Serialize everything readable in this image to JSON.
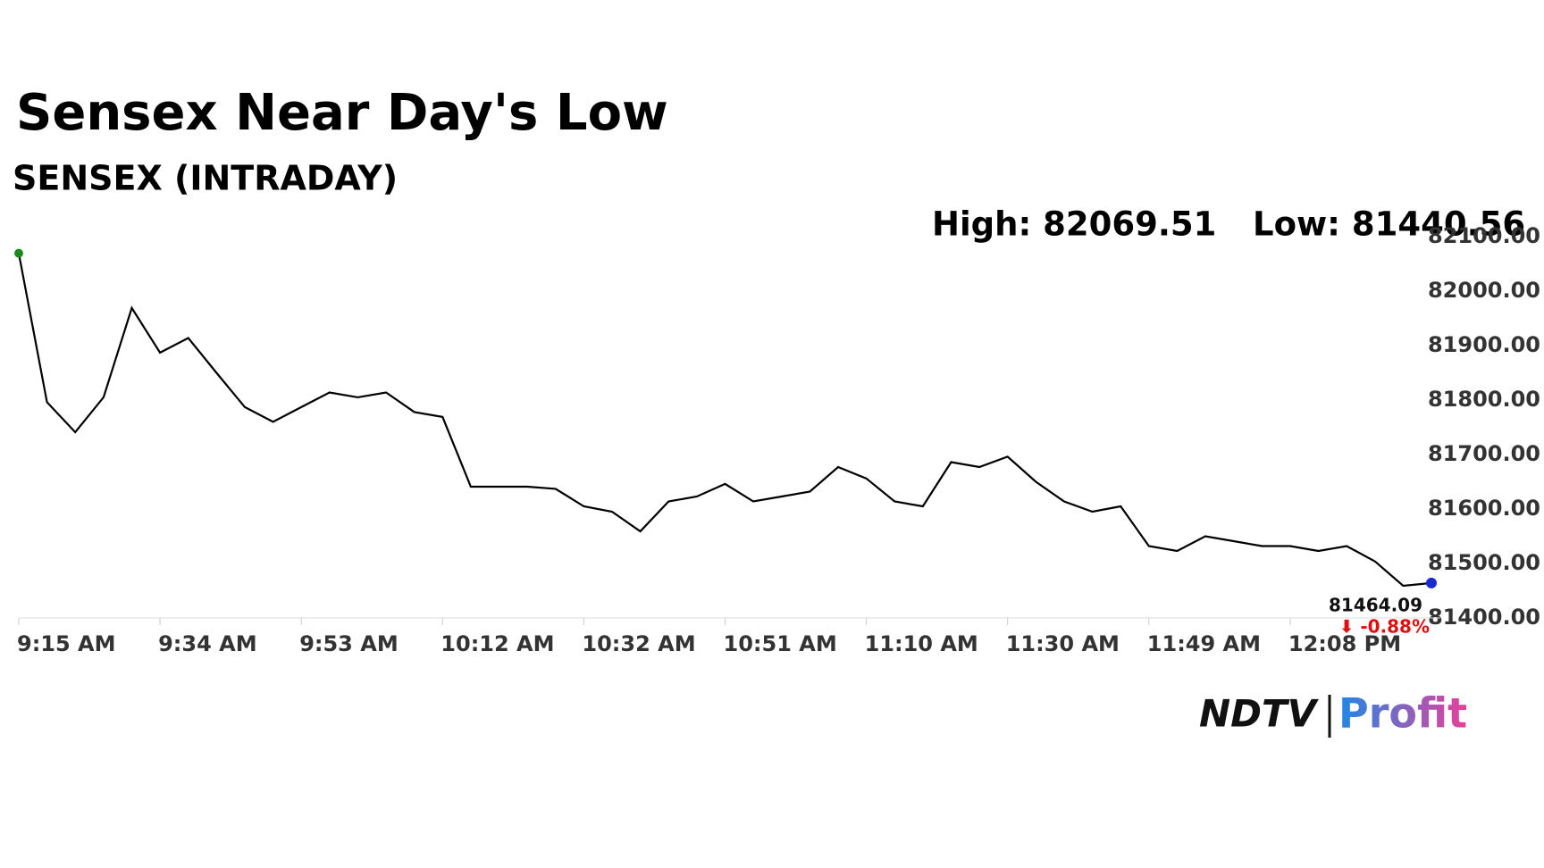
{
  "chart_data": {
    "type": "line",
    "title": "Sensex Near Day's Low",
    "subtitle": "SENSEX (INTRADAY)",
    "annotations": [
      "High: 82069.51",
      "Low: 81440.56"
    ],
    "last_label": "81464.09",
    "change_label": "⬇ -0.88%",
    "categories": [
      "9:15 AM",
      null,
      null,
      null,
      null,
      "9:34 AM",
      null,
      null,
      null,
      null,
      "9:53 AM",
      null,
      null,
      null,
      null,
      "10:12 AM",
      null,
      null,
      null,
      null,
      "10:32 AM",
      null,
      null,
      null,
      null,
      "10:51 AM",
      null,
      null,
      null,
      null,
      "11:10 AM",
      null,
      null,
      null,
      null,
      "11:30 AM",
      null,
      null,
      null,
      null,
      "11:49 AM",
      null,
      null,
      null,
      null,
      "12:08 PM",
      null,
      null,
      null,
      null,
      null
    ],
    "values": [
      82069.51,
      81796,
      81741,
      81805,
      81969,
      81887,
      81914,
      81850,
      81787,
      81760,
      81787,
      81814,
      81805,
      81814,
      81778,
      81769,
      81641,
      81641,
      81641,
      81637,
      81605,
      81595,
      81559,
      81614,
      81623,
      81646,
      81614,
      81623,
      81632,
      81677,
      81656,
      81614,
      81605,
      81686,
      81677,
      81696,
      81650,
      81614,
      81595,
      81605,
      81532,
      81523,
      81550,
      81541,
      81532,
      81532,
      81523,
      81532,
      81504,
      81459,
      81464.09
    ],
    "color": "#000000",
    "ylim": [
      81400,
      82100
    ],
    "yticks": [
      {
        "value": 81400,
        "label": "81400.00"
      },
      {
        "value": 81500,
        "label": "81500.00"
      },
      {
        "value": 81600,
        "label": "81600.00"
      },
      {
        "value": 81700,
        "label": "81700.00"
      },
      {
        "value": 81800,
        "label": "81800.00"
      },
      {
        "value": 81900,
        "label": "81900.00"
      },
      {
        "value": 82000,
        "label": "82000.00"
      },
      {
        "value": 82100,
        "label": "82100.00"
      }
    ],
    "brand": [
      "NDTV",
      "Profit"
    ]
  }
}
